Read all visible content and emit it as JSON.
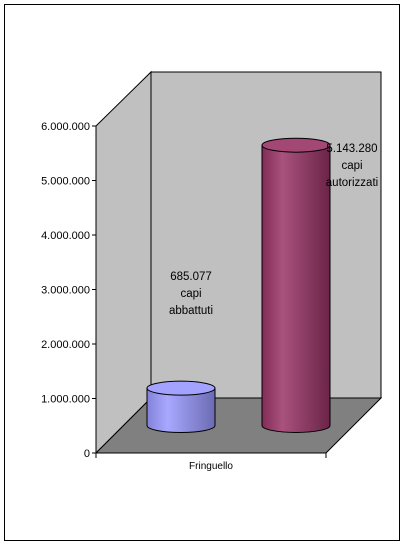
{
  "chart_data": {
    "type": "bar",
    "bar_style": "3d-cylinder",
    "categories": [
      "Fringuello"
    ],
    "series": [
      {
        "values": [
          685077
        ],
        "color": "#9999ff"
      },
      {
        "values": [
          5143280
        ],
        "color": "#993366"
      }
    ],
    "annotations": [
      {
        "series": 0,
        "lines": [
          "685.077",
          "capi",
          "abbattuti"
        ]
      },
      {
        "series": 1,
        "lines": [
          "5.143.280",
          "capi",
          "autorizzati"
        ]
      }
    ],
    "ylim": [
      0,
      6000000
    ],
    "yticks": [
      "0",
      "1.000.000",
      "2.000.000",
      "3.000.000",
      "4.000.000",
      "5.000.000",
      "6.000.000"
    ],
    "grid": false,
    "wall_color": "#c0c0c0",
    "floor_color": "#808080",
    "legend": "none"
  }
}
